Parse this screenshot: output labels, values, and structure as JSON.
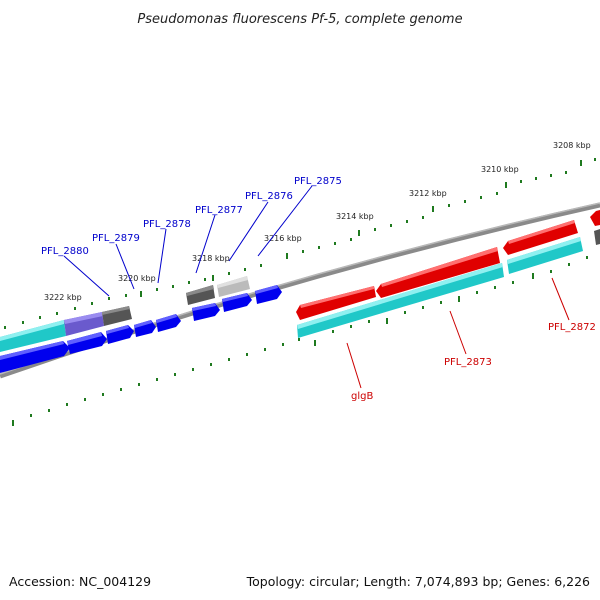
{
  "title": "Pseudomonas fluorescens Pf-5, complete genome",
  "footer": {
    "accession": "Accession: NC_004129",
    "topology": "Topology: circular; Length: 7,074,893 bp; Genes: 6,226"
  },
  "colors": {
    "background": "#ffffff",
    "backbone": "#8a8a8a",
    "ticks": "#1f7a1f",
    "forward_cds": "#e00000",
    "reverse_cds": "#0000ee",
    "gene": "#20c8c8",
    "rna_dark": "#555555",
    "rna_light": "#bbbbbb",
    "feature_purple": "#6a5acd",
    "label_blue": "#0000cc",
    "label_red": "#cc0000"
  },
  "scale_labels": [
    "3208 kbp",
    "3210 kbp",
    "3212 kbp",
    "3214 kbp",
    "3216 kbp",
    "3218 kbp",
    "3220 kbp",
    "3222 kbp"
  ],
  "gene_labels_blue": [
    "PFL_2875",
    "PFL_2876",
    "PFL_2877",
    "PFL_2878",
    "PFL_2879",
    "PFL_2880"
  ],
  "gene_labels_red": [
    "PFL_2872",
    "PFL_2873",
    "glgB"
  ]
}
